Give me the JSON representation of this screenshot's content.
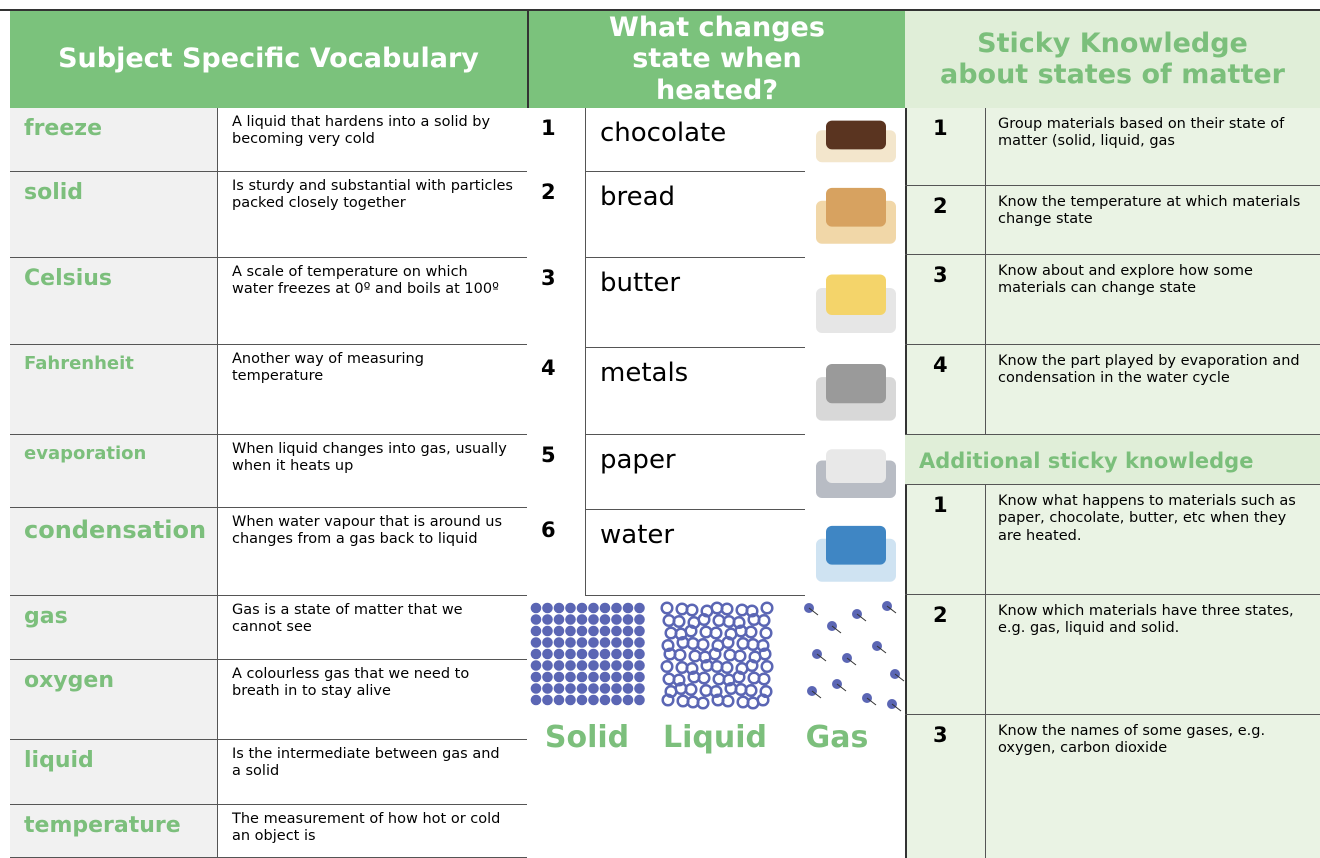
{
  "vocabulary": {
    "title": "Subject Specific Vocabulary",
    "rows": [
      {
        "term": "freeze",
        "definition": "A liquid that hardens into a solid by becoming very cold"
      },
      {
        "term": "solid",
        "definition": "Is sturdy and substantial with particles packed closely together"
      },
      {
        "term": "Celsius",
        "definition": "A scale of temperature on which water freezes at 0º and boils at 100º"
      },
      {
        "term": "Fahrenheit",
        "definition": "Another way of measuring temperature"
      },
      {
        "term": "evaporation",
        "definition": "When liquid changes into gas, usually when it heats up"
      },
      {
        "term": "condensation",
        "definition": "When water vapour that is around us changes from a gas back to liquid"
      },
      {
        "term": "gas",
        "definition": "Gas is a state of matter that we cannot see"
      },
      {
        "term": "oxygen",
        "definition": "A colourless gas that we need to breath in to stay alive"
      },
      {
        "term": "liquid",
        "definition": "Is the intermediate between gas and a solid"
      },
      {
        "term": "temperature",
        "definition": "The measurement of how hot or cold an object is"
      }
    ]
  },
  "heated": {
    "title": "What changes state when heated?",
    "items": [
      {
        "number": 1,
        "name": "chocolate"
      },
      {
        "number": 2,
        "name": "bread"
      },
      {
        "number": 3,
        "name": "butter"
      },
      {
        "number": 4,
        "name": "metals"
      },
      {
        "number": 5,
        "name": "paper"
      },
      {
        "number": 6,
        "name": "water"
      }
    ],
    "states": [
      "Solid",
      "Liquid",
      "Gas"
    ]
  },
  "sticky": {
    "title": "Sticky Knowledge about states of matter",
    "items": [
      {
        "number": 1,
        "text": "Group materials based on their state of matter (solid, liquid, gas"
      },
      {
        "number": 2,
        "text": "Know the temperature at which materials change state"
      },
      {
        "number": 3,
        "text": "Know about and explore how some materials can change state"
      },
      {
        "number": 4,
        "text": "Know the part played by evaporation and condensation in the water cycle"
      }
    ],
    "additional_title": "Additional sticky knowledge",
    "additional_items": [
      {
        "number": 1,
        "text": "Know what happens to materials such as paper, chocolate, butter, etc when they are heated."
      },
      {
        "number": 2,
        "text": "Know which materials have three states, e.g. gas, liquid and solid."
      },
      {
        "number": 3,
        "text": "Know the names of some gases, e.g. oxygen, carbon dioxide"
      }
    ]
  }
}
